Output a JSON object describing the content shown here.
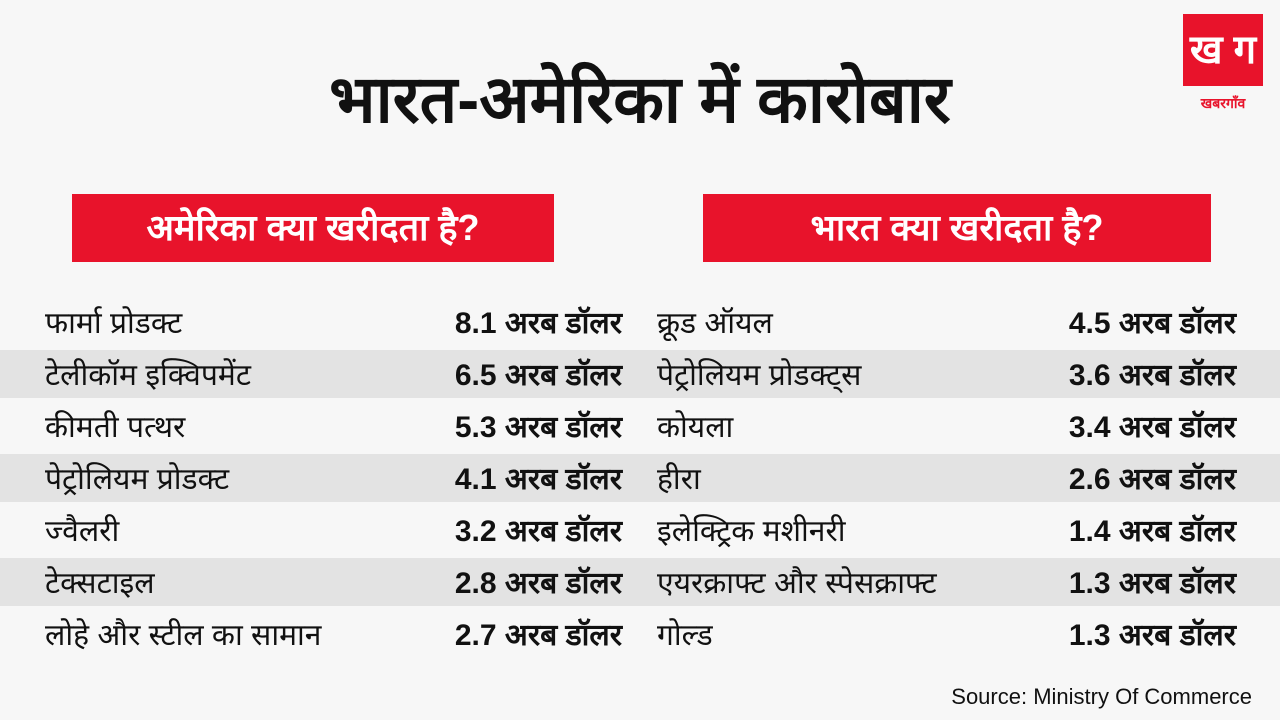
{
  "title": "भारत-अमेरिका में कारोबार",
  "logo": {
    "mark": "ख ग",
    "name": "खबरगाँव"
  },
  "us_buys": {
    "heading": "अमेरिका क्या खरीदता है?",
    "items": [
      {
        "name": "फार्मा प्रोडक्ट",
        "value": "8.1 अरब डॉलर"
      },
      {
        "name": "टेलीकॉम इक्विपमेंट",
        "value": "6.5 अरब डॉलर"
      },
      {
        "name": "कीमती पत्थर",
        "value": "5.3 अरब डॉलर"
      },
      {
        "name": "पेट्रोलियम प्रोडक्ट",
        "value": "4.1 अरब डॉलर"
      },
      {
        "name": "ज्वैलरी",
        "value": "3.2 अरब डॉलर"
      },
      {
        "name": "टेक्सटाइल",
        "value": "2.8 अरब डॉलर"
      },
      {
        "name": "लोहे और स्टील का सामान",
        "value": "2.7 अरब डॉलर"
      }
    ]
  },
  "india_buys": {
    "heading": "भारत क्या खरीदता है?",
    "items": [
      {
        "name": "क्रूड ऑयल",
        "value": "4.5 अरब डॉलर"
      },
      {
        "name": "पेट्रोलियम प्रोडक्ट्स",
        "value": "3.6 अरब डॉलर"
      },
      {
        "name": "कोयला",
        "value": "3.4 अरब डॉलर"
      },
      {
        "name": "हीरा",
        "value": "2.6 अरब डॉलर"
      },
      {
        "name": "इलेक्ट्रिक मशीनरी",
        "value": "1.4 अरब डॉलर"
      },
      {
        "name": "एयरक्राफ्ट और स्पेसक्राफ्ट",
        "value": "1.3 अरब डॉलर"
      },
      {
        "name": "गोल्ड",
        "value": "1.3 अरब डॉलर"
      }
    ]
  },
  "source": "Source: Ministry Of Commerce"
}
